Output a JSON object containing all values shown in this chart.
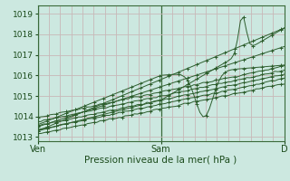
{
  "xlabel": "Pression niveau de la mer( hPa )",
  "bg_color": "#cce8e0",
  "grid_color_h": "#c8b8b8",
  "grid_color_v": "#c8b8b8",
  "line_color": "#2d5e2d",
  "ylim": [
    1012.8,
    1019.4
  ],
  "yticks": [
    1013,
    1014,
    1015,
    1016,
    1017,
    1018,
    1019
  ],
  "xtick_labels": [
    "Ven",
    "Sam",
    "D"
  ],
  "xtick_positions": [
    0.0,
    0.5,
    1.0
  ],
  "n_vertical_grid": 22
}
